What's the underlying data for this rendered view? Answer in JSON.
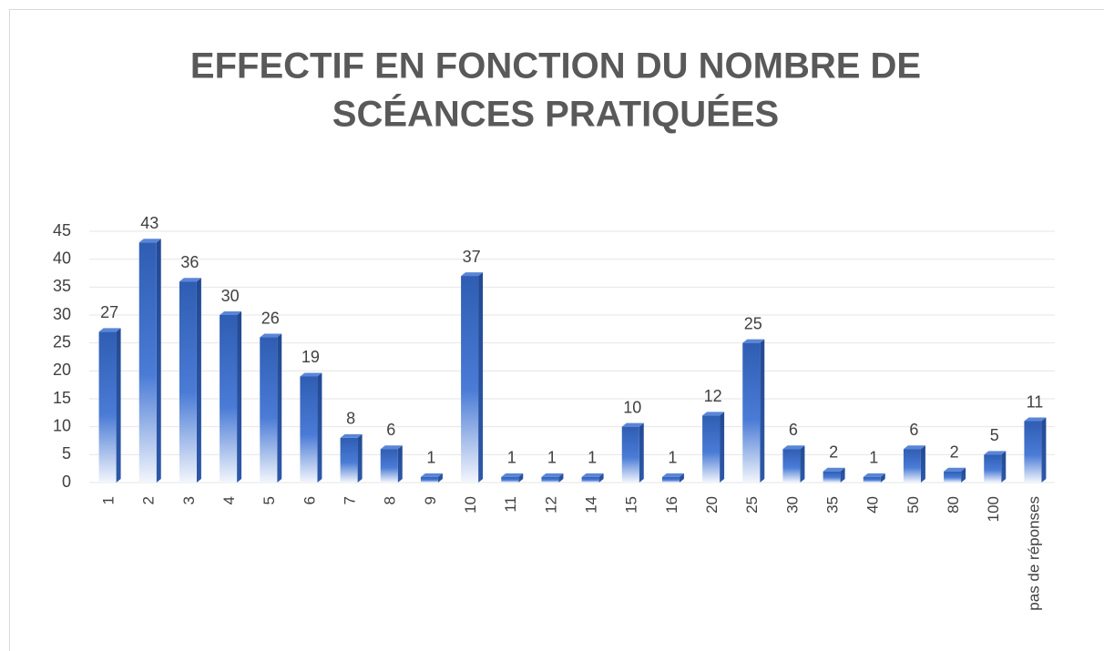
{
  "chart_data": {
    "type": "bar3d",
    "title": [
      "EFFECTIF EN FONCTION DU NOMBRE DE",
      "SCÉANCES PRATIQUÉES"
    ],
    "categories": [
      "1",
      "2",
      "3",
      "4",
      "5",
      "6",
      "7",
      "8",
      "9",
      "10",
      "11",
      "12",
      "14",
      "15",
      "16",
      "20",
      "25",
      "30",
      "35",
      "40",
      "50",
      "80",
      "100",
      "pas de réponses"
    ],
    "values": [
      27,
      43,
      36,
      30,
      26,
      19,
      8,
      6,
      1,
      37,
      1,
      1,
      1,
      10,
      1,
      12,
      25,
      6,
      2,
      1,
      6,
      2,
      5,
      11
    ],
    "color": "#3a6cc8",
    "ylim": [
      0,
      45
    ],
    "yticks": [
      0,
      5,
      10,
      15,
      20,
      25,
      30,
      35,
      40,
      45
    ],
    "grid": true
  }
}
